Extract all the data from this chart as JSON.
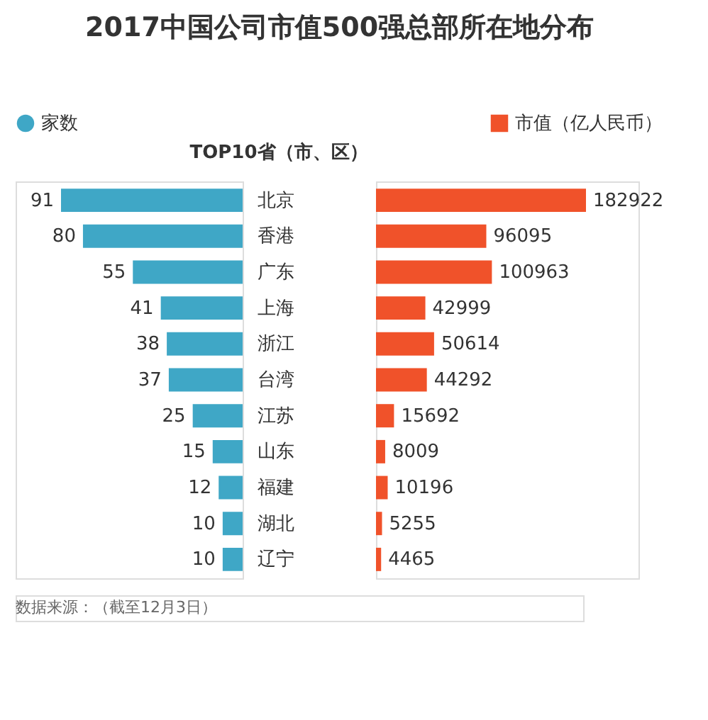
{
  "chart_data": [
    {
      "type": "bar",
      "orientation": "horizontal",
      "title": "2017中国公司市值500强总部所在地分布",
      "ylabel": "TOP10省（市、区）",
      "categories": [
        "北京",
        "香港",
        "广东",
        "上海",
        "浙江",
        "台湾",
        "江苏",
        "山东",
        "福建",
        "湖北",
        "辽宁"
      ],
      "series": [
        {
          "name": "家数",
          "color": "#3fa7c6",
          "values": [
            91,
            80,
            55,
            41,
            38,
            37,
            25,
            15,
            12,
            10,
            10
          ]
        }
      ],
      "data_labels": true,
      "legend": "top left",
      "tick_labels": "y",
      "annotations": [
        "数据来源：（截至12月3日）"
      ]
    },
    {
      "type": "bar",
      "orientation": "horizontal",
      "series": [
        {
          "name": "市值（亿人民币）",
          "color": "#f0522a",
          "values": [
            182922,
            96095,
            100963,
            42999,
            50614,
            44292,
            15692,
            8009,
            10196,
            5255,
            4465
          ]
        }
      ],
      "data_labels": true,
      "legend": "top right",
      "tick_labels": false
    }
  ]
}
